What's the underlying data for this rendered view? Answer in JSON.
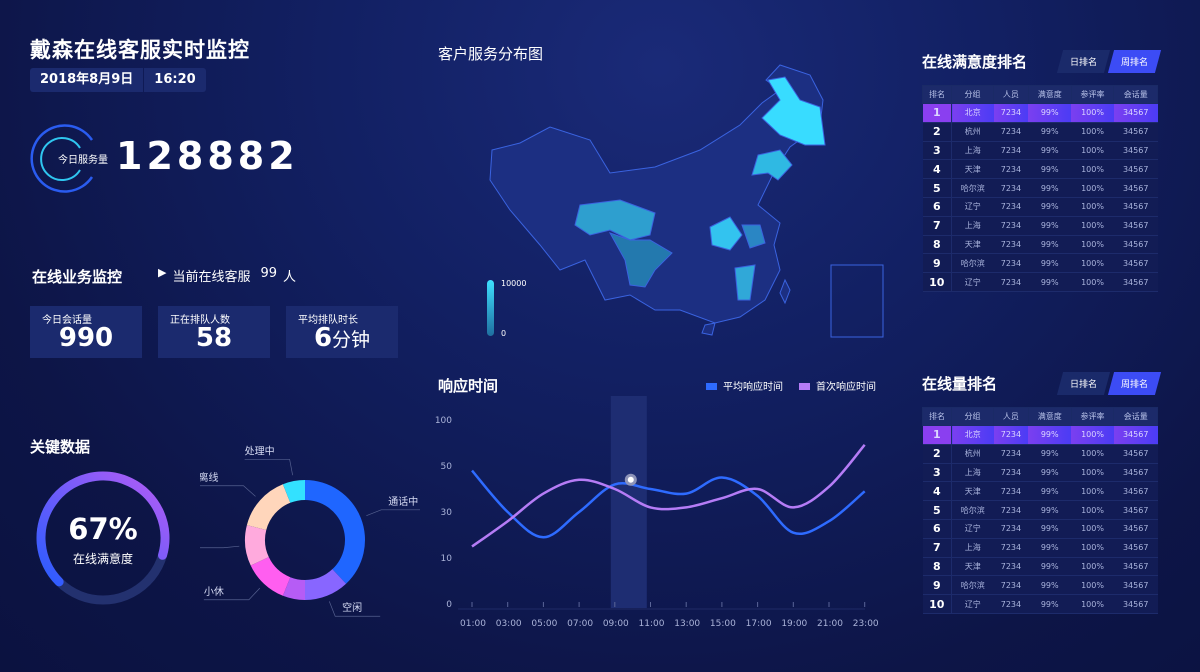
{
  "header": {
    "title": "戴森在线客服实时监控",
    "date": "2018年8月9日",
    "time": "16:20"
  },
  "service": {
    "label": "今日服务量",
    "value": "128882"
  },
  "business": {
    "title": "在线业务监控",
    "online_prefix": "当前在线客服",
    "online_count": "99",
    "online_unit": "人",
    "cards": [
      {
        "label": "今日会话量",
        "value": "990",
        "unit": ""
      },
      {
        "label": "正在排队人数",
        "value": "58",
        "unit": ""
      },
      {
        "label": "平均排队时长",
        "value": "6",
        "unit": "分钟"
      }
    ]
  },
  "key": {
    "title": "关键数据",
    "gauge_value": "67%",
    "gauge_fraction": 0.67,
    "gauge_label": "在线满意度",
    "donut": [
      {
        "name": "通话中",
        "pct": 38,
        "color": "#1f66ff"
      },
      {
        "name": "空闲",
        "pct": 12,
        "color": "#8866ff"
      },
      {
        "name": "",
        "pct": 6,
        "color": "#b65cf5"
      },
      {
        "name": "小休",
        "pct": 12,
        "color": "#ff5ef0"
      },
      {
        "name": "挂起",
        "pct": 11,
        "color": "#ffaadd"
      },
      {
        "name": "离线",
        "pct": 15,
        "color": "#ffd6bb"
      },
      {
        "name": "处理中",
        "pct": 6,
        "color": "#33e1ff"
      }
    ]
  },
  "map": {
    "title": "客户服务分布图",
    "legend_max": "10000",
    "legend_min": "0"
  },
  "chart_data": {
    "type": "line",
    "title": "响应时间",
    "categories": [
      "01:00",
      "03:00",
      "05:00",
      "07:00",
      "09:00",
      "11:00",
      "13:00",
      "15:00",
      "17:00",
      "19:00",
      "21:00",
      "23:00"
    ],
    "yticks": [
      0,
      10,
      30,
      50,
      100
    ],
    "legend_position": "top-right",
    "highlight": "10:00",
    "series": [
      {
        "name": "平均响应时间",
        "color": "#2e6bff",
        "values": [
          48,
          30,
          19,
          30,
          42,
          40,
          38,
          45,
          37,
          21,
          26,
          39
        ]
      },
      {
        "name": "首次响应时间",
        "color": "#b57cf6",
        "values": [
          15,
          26,
          38,
          44,
          40,
          32,
          32,
          36,
          40,
          32,
          41,
          73
        ]
      }
    ]
  },
  "rankings": [
    {
      "title": "在线满意度排名",
      "tabs": [
        "日排名",
        "周排名"
      ],
      "active_tab": 1,
      "headers": [
        "排名",
        "分组",
        "人员",
        "满意度",
        "参评率",
        "会话量"
      ],
      "rows": [
        [
          "1",
          "北京",
          "7234",
          "99%",
          "100%",
          "34567"
        ],
        [
          "2",
          "杭州",
          "7234",
          "99%",
          "100%",
          "34567"
        ],
        [
          "3",
          "上海",
          "7234",
          "99%",
          "100%",
          "34567"
        ],
        [
          "4",
          "天津",
          "7234",
          "99%",
          "100%",
          "34567"
        ],
        [
          "5",
          "哈尔滨",
          "7234",
          "99%",
          "100%",
          "34567"
        ],
        [
          "6",
          "辽宁",
          "7234",
          "99%",
          "100%",
          "34567"
        ],
        [
          "7",
          "上海",
          "7234",
          "99%",
          "100%",
          "34567"
        ],
        [
          "8",
          "天津",
          "7234",
          "99%",
          "100%",
          "34567"
        ],
        [
          "9",
          "哈尔滨",
          "7234",
          "99%",
          "100%",
          "34567"
        ],
        [
          "10",
          "辽宁",
          "7234",
          "99%",
          "100%",
          "34567"
        ]
      ]
    },
    {
      "title": "在线量排名",
      "tabs": [
        "日排名",
        "周排名"
      ],
      "active_tab": 1,
      "headers": [
        "排名",
        "分组",
        "人员",
        "满意度",
        "参评率",
        "会话量"
      ],
      "rows": [
        [
          "1",
          "北京",
          "7234",
          "99%",
          "100%",
          "34567"
        ],
        [
          "2",
          "杭州",
          "7234",
          "99%",
          "100%",
          "34567"
        ],
        [
          "3",
          "上海",
          "7234",
          "99%",
          "100%",
          "34567"
        ],
        [
          "4",
          "天津",
          "7234",
          "99%",
          "100%",
          "34567"
        ],
        [
          "5",
          "哈尔滨",
          "7234",
          "99%",
          "100%",
          "34567"
        ],
        [
          "6",
          "辽宁",
          "7234",
          "99%",
          "100%",
          "34567"
        ],
        [
          "7",
          "上海",
          "7234",
          "99%",
          "100%",
          "34567"
        ],
        [
          "8",
          "天津",
          "7234",
          "99%",
          "100%",
          "34567"
        ],
        [
          "9",
          "哈尔滨",
          "7234",
          "99%",
          "100%",
          "34567"
        ],
        [
          "10",
          "辽宁",
          "7234",
          "99%",
          "100%",
          "34567"
        ]
      ]
    }
  ]
}
